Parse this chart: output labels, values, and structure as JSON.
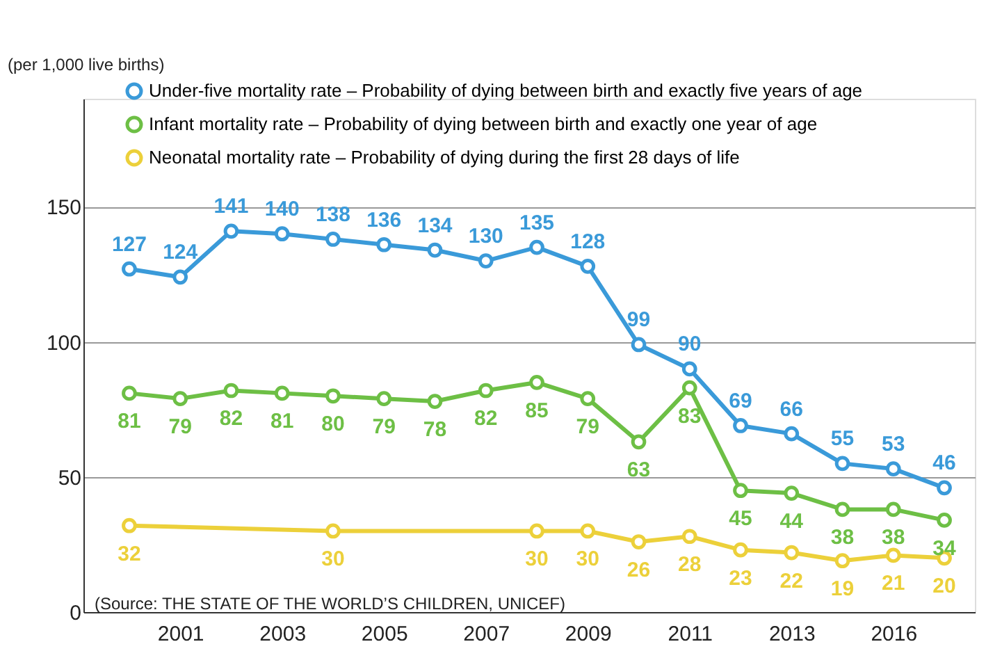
{
  "chart_data": {
    "type": "line",
    "ylabel": "(per 1,000 live births)",
    "categories": [
      null,
      "2001",
      null,
      "2003",
      null,
      "2005",
      null,
      "2007",
      null,
      "2009",
      null,
      "2011",
      null,
      "2013",
      null,
      "2016",
      null
    ],
    "series": [
      {
        "name": "Under-five mortality rate – Probability of dying between birth and exactly five years of age",
        "color": "#3a9ad9",
        "values": [
          127,
          124,
          141,
          140,
          138,
          136,
          134,
          130,
          135,
          128,
          99,
          90,
          69,
          66,
          55,
          53,
          46
        ]
      },
      {
        "name": "Infant mortality rate – Probability of dying between birth and exactly one year of age",
        "color": "#6dbf45",
        "values": [
          81,
          79,
          82,
          81,
          80,
          79,
          78,
          82,
          85,
          79,
          63,
          83,
          45,
          44,
          38,
          38,
          34
        ]
      },
      {
        "name": "Neonatal mortality rate – Probability of dying during the first 28 days of life",
        "color": "#ecd03a",
        "values": [
          32,
          null,
          null,
          null,
          30,
          null,
          null,
          null,
          30,
          30,
          26,
          28,
          23,
          22,
          19,
          21,
          20
        ]
      }
    ],
    "ylim": [
      0,
      190
    ],
    "yticks": [
      0,
      50,
      100,
      150
    ],
    "grid": "y",
    "legend": "top",
    "marker": "circle",
    "line_style": "solid",
    "data_labels": true,
    "annotations": [
      "(Source: THE STATE OF THE WORLD’S CHILDREN, UNICEF)"
    ]
  }
}
